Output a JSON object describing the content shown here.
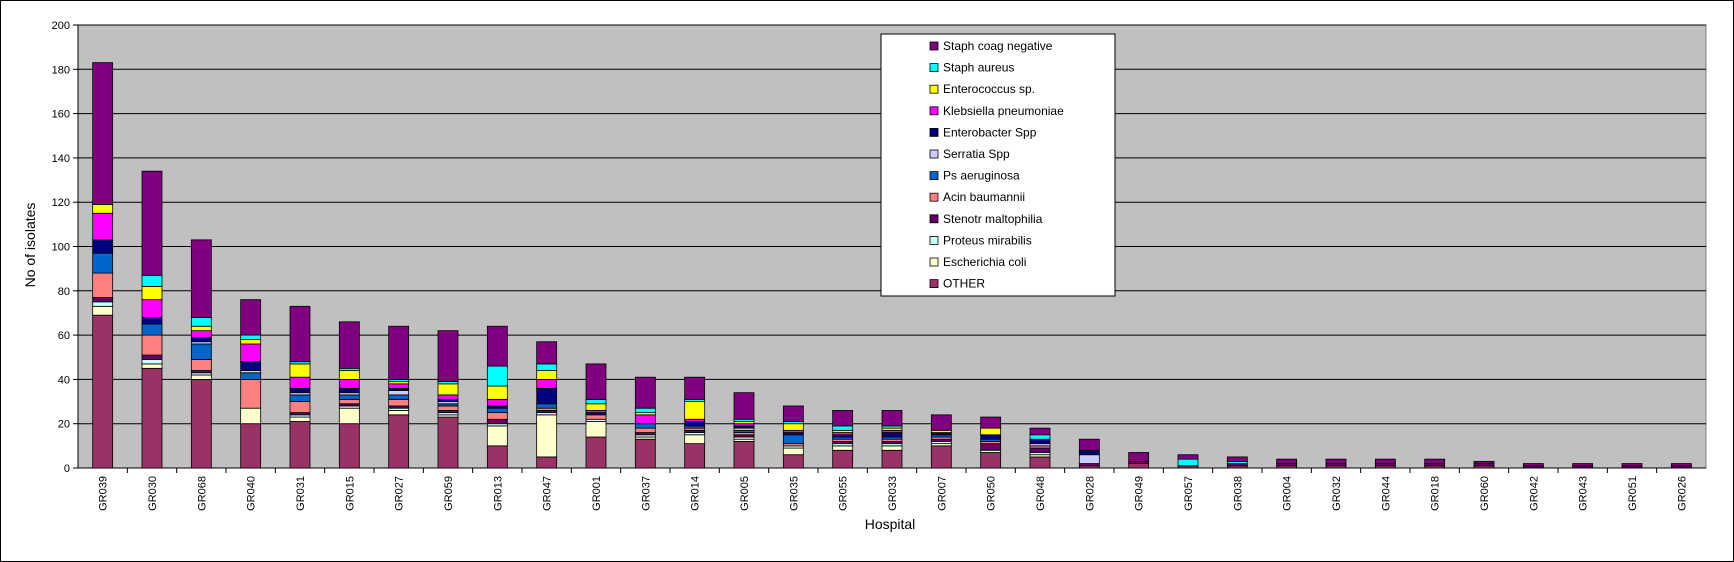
{
  "chart_data": {
    "type": "bar",
    "stacked": true,
    "title": "",
    "xlabel": "Hospital",
    "ylabel": "No of isolates",
    "ylim": [
      0,
      200
    ],
    "yticks": [
      0,
      20,
      40,
      60,
      80,
      100,
      120,
      140,
      160,
      180,
      200
    ],
    "grid": true,
    "plot_background": "#c0c0c0",
    "legend_position": "top-center",
    "categories": [
      "GR039",
      "GR030",
      "GR068",
      "GR040",
      "GR031",
      "GR015",
      "GR027",
      "GR059",
      "GR013",
      "GR047",
      "GR001",
      "GR037",
      "GR014",
      "GR005",
      "GR035",
      "GR055",
      "GR033",
      "GR007",
      "GR050",
      "GR048",
      "GR028",
      "GR049",
      "GR057",
      "GR038",
      "GR004",
      "GR032",
      "GR044",
      "GR018",
      "GR060",
      "GR042",
      "GR043",
      "GR051",
      "GR026"
    ],
    "series": [
      {
        "name": "OTHER",
        "color": "#993366",
        "values": [
          69,
          45,
          40,
          20,
          21,
          20,
          24,
          23,
          10,
          5,
          14,
          13,
          11,
          12,
          6,
          8,
          8,
          10,
          7,
          5,
          1,
          2,
          1,
          1,
          1,
          1,
          1,
          1,
          1,
          0,
          0,
          0,
          0
        ]
      },
      {
        "name": "Escherichia coli",
        "color": "#ffffcc",
        "values": [
          4,
          2,
          2,
          7,
          2,
          7,
          2,
          1,
          9,
          19,
          7,
          1,
          4,
          1,
          3,
          2,
          2,
          1,
          1,
          1,
          0,
          0,
          0,
          0,
          0,
          0,
          0,
          0,
          0,
          0,
          0,
          0,
          0
        ]
      },
      {
        "name": "Proteus mirabilis",
        "color": "#ccffff",
        "values": [
          2,
          2,
          1,
          0,
          1,
          1,
          1,
          1,
          1,
          1,
          1,
          1,
          1,
          1,
          1,
          1,
          1,
          1,
          0,
          1,
          0,
          0,
          0,
          0,
          0,
          0,
          0,
          0,
          0,
          0,
          0,
          0,
          0
        ]
      },
      {
        "name": "Stenotr maltophilia",
        "color": "#660066",
        "values": [
          2,
          2,
          1,
          0,
          1,
          1,
          1,
          1,
          2,
          1,
          0,
          1,
          1,
          1,
          0,
          1,
          1,
          1,
          3,
          2,
          1,
          1,
          0,
          1,
          1,
          1,
          1,
          1,
          1,
          1,
          1,
          1,
          1
        ]
      },
      {
        "name": "Acin baumannii",
        "color": "#ff8080",
        "values": [
          11,
          9,
          5,
          13,
          5,
          2,
          3,
          2,
          3,
          1,
          2,
          2,
          1,
          1,
          1,
          1,
          1,
          1,
          1,
          1,
          0,
          0,
          0,
          0,
          0,
          0,
          0,
          0,
          0,
          0,
          0,
          0,
          0
        ]
      },
      {
        "name": "Ps aeruginosa",
        "color": "#0066cc",
        "values": [
          9,
          5,
          7,
          3,
          3,
          2,
          2,
          1,
          2,
          2,
          0,
          2,
          1,
          1,
          4,
          1,
          1,
          1,
          1,
          0,
          0,
          0,
          0,
          0,
          0,
          0,
          0,
          0,
          0,
          0,
          0,
          0,
          0
        ]
      },
      {
        "name": "Serratia Spp",
        "color": "#ccccff",
        "values": [
          0,
          0,
          1,
          1,
          1,
          1,
          2,
          1,
          0,
          0,
          0,
          0,
          0,
          1,
          0,
          0,
          0,
          0,
          0,
          1,
          4,
          0,
          0,
          0,
          0,
          0,
          0,
          0,
          0,
          0,
          0,
          0,
          0
        ]
      },
      {
        "name": "Enterobacter Spp",
        "color": "#000080",
        "values": [
          6,
          3,
          2,
          4,
          2,
          2,
          1,
          1,
          1,
          7,
          1,
          0,
          2,
          1,
          1,
          1,
          2,
          1,
          2,
          2,
          2,
          0,
          0,
          0,
          0,
          0,
          0,
          0,
          0,
          0,
          0,
          0,
          0
        ]
      },
      {
        "name": "Klebsiella pneumoniae",
        "color": "#ff00ff",
        "values": [
          12,
          8,
          3,
          8,
          5,
          4,
          2,
          2,
          3,
          4,
          1,
          4,
          1,
          1,
          1,
          1,
          1,
          0,
          0,
          0,
          0,
          0,
          0,
          0,
          0,
          0,
          0,
          0,
          0,
          0,
          0,
          0,
          0
        ]
      },
      {
        "name": "Enterococcus sp.",
        "color": "#ffff00",
        "values": [
          4,
          6,
          2,
          2,
          6,
          4,
          1,
          5,
          6,
          4,
          3,
          1,
          8,
          1,
          3,
          1,
          1,
          1,
          3,
          0,
          0,
          0,
          0,
          0,
          0,
          0,
          0,
          0,
          0,
          0,
          0,
          0,
          0
        ]
      },
      {
        "name": "Staph aureus",
        "color": "#00ffff",
        "values": [
          0,
          5,
          4,
          2,
          1,
          1,
          1,
          1,
          9,
          3,
          2,
          2,
          1,
          1,
          1,
          2,
          1,
          0,
          0,
          2,
          0,
          0,
          3,
          1,
          0,
          0,
          0,
          0,
          0,
          0,
          0,
          0,
          0
        ]
      },
      {
        "name": "Staph coag negative",
        "color": "#800080",
        "values": [
          64,
          47,
          35,
          16,
          25,
          21,
          24,
          23,
          18,
          10,
          16,
          14,
          10,
          12,
          7,
          7,
          7,
          7,
          5,
          3,
          5,
          4,
          2,
          2,
          2,
          2,
          2,
          2,
          1,
          1,
          1,
          1,
          1
        ]
      }
    ]
  }
}
